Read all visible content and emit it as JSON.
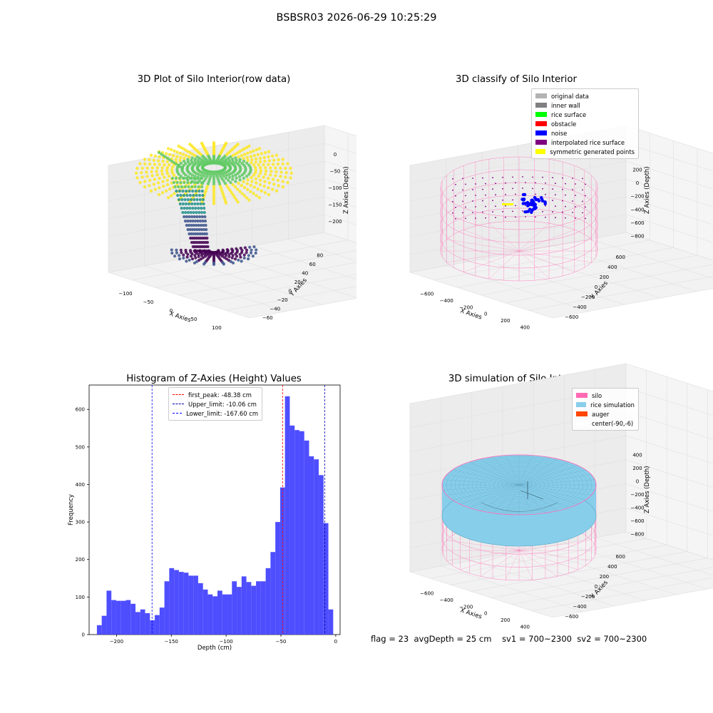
{
  "suptitle": "BSBSR03 2026-06-29 10:25:29",
  "footer": {
    "flag": "flag = 23",
    "avgDepth": "avgDepth = 25 cm",
    "sv1": "sv1 = 700~2300",
    "sv2": "sv2 = 700~2300"
  },
  "panels": {
    "raw": {
      "title": "3D Plot of Silo Interior(row data)",
      "xlabel": "X Axies",
      "ylabel": "Y Axies",
      "zlabel": "Z Axies (Depth)",
      "xticks": [
        "−100",
        "−50",
        "0",
        "50",
        "100"
      ],
      "yticks": [
        "−60",
        "−40",
        "−20",
        "0",
        "20",
        "40",
        "60",
        "80"
      ],
      "zticks": [
        "0",
        "−50",
        "−100",
        "−150",
        "−200"
      ],
      "colormap": [
        "#440154",
        "#3b528b",
        "#21918c",
        "#5ec962",
        "#fde725"
      ]
    },
    "classify": {
      "title": "3D classify of Silo Interior",
      "xlabel": "X Axies",
      "ylabel": "Y Axies",
      "zlabel": "Z Axies (Depth)",
      "xticks": [
        "−600",
        "−400",
        "−200",
        "0",
        "200",
        "400"
      ],
      "yticks": [
        "−600",
        "−400",
        "−200",
        "0",
        "200",
        "400",
        "600"
      ],
      "zticks": [
        "200",
        "0",
        "−200",
        "−400",
        "−600",
        "−800"
      ],
      "legend": [
        {
          "label": "original data",
          "color": "#b3b3b3"
        },
        {
          "label": "inner wall",
          "color": "#808080"
        },
        {
          "label": "rice surface",
          "color": "#00ff00"
        },
        {
          "label": "obstacle",
          "color": "#ff0000"
        },
        {
          "label": "noise",
          "color": "#0000ff"
        },
        {
          "label": "interpolated rice surface",
          "color": "#800080"
        },
        {
          "label": "symmetric generated points",
          "color": "#ffff00"
        }
      ]
    },
    "simulation": {
      "title": "3D simulation of Silo Interior",
      "xlabel": "X Axies",
      "ylabel": "Y Axies",
      "zlabel": "Z Axies (Depth)",
      "xticks": [
        "−600",
        "−400",
        "−200",
        "0",
        "200",
        "400"
      ],
      "yticks": [
        "−600",
        "−400",
        "−200",
        "0",
        "200",
        "400",
        "600"
      ],
      "zticks": [
        "400",
        "200",
        "0",
        "−200",
        "−400",
        "−600",
        "−800"
      ],
      "legend": [
        {
          "label": "silo",
          "color": "#ff69b4"
        },
        {
          "label": "rice simulation",
          "color": "#87ceeb"
        },
        {
          "label": "auger",
          "color": "#ff4500"
        },
        {
          "label": "center(-90,-6)",
          "color": "#ffffff"
        }
      ]
    }
  },
  "chart_data": [
    {
      "type": "bar",
      "title": "Histogram of Z-Axies (Height) Values",
      "xlabel": "Depth (cm)",
      "ylabel": "Frequency",
      "xlim": [
        -225,
        4
      ],
      "ylim": [
        0,
        665
      ],
      "xticks": [
        -200,
        -150,
        -100,
        -50,
        0
      ],
      "yticks": [
        0,
        100,
        200,
        300,
        400,
        500,
        600
      ],
      "bin_width": 4.4,
      "bin_start": -217.9,
      "values": [
        25,
        50,
        117,
        92,
        90,
        90,
        92,
        82,
        60,
        67,
        57,
        38,
        52,
        72,
        142,
        177,
        172,
        167,
        165,
        157,
        157,
        137,
        120,
        107,
        102,
        117,
        107,
        107,
        142,
        127,
        155,
        140,
        130,
        142,
        142,
        177,
        220,
        300,
        392,
        635,
        557,
        545,
        542,
        517,
        475,
        467,
        425,
        297,
        67
      ],
      "bar_color": "#4444ff",
      "lines": [
        {
          "label": "first_peak: -48.38 cm",
          "x": -48.38,
          "color": "#ff0000"
        },
        {
          "label": "Upper_limit: -10.06 cm",
          "x": -10.06,
          "color": "#0000aa"
        },
        {
          "label": "Lower_limit: -167.60 cm",
          "x": -167.6,
          "color": "#0000ff"
        }
      ],
      "legend_position": "top-center"
    }
  ]
}
